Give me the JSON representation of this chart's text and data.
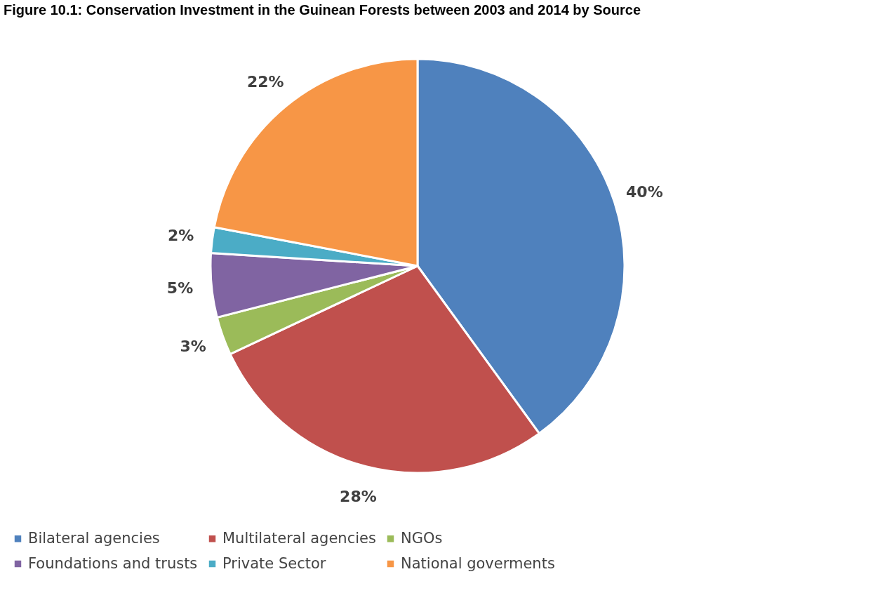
{
  "chart_data": {
    "type": "pie",
    "title": "Figure 10.1: Conservation Investment in the Guinean Forests between 2003 and 2014 by Source",
    "categories": [
      "Bilateral agencies",
      "Multilateral agencies",
      "NGOs",
      "Foundations and trusts",
      "Private Sector",
      "National goverments"
    ],
    "values": [
      40,
      28,
      3,
      5,
      2,
      22
    ],
    "colors": [
      "#4f81bd",
      "#c0504d",
      "#9bbb59",
      "#8064a2",
      "#4bacc6",
      "#f79646"
    ],
    "value_labels": [
      "40%",
      "28%",
      "3%",
      "5%",
      "2%",
      "22%"
    ],
    "legend": "bottom"
  }
}
